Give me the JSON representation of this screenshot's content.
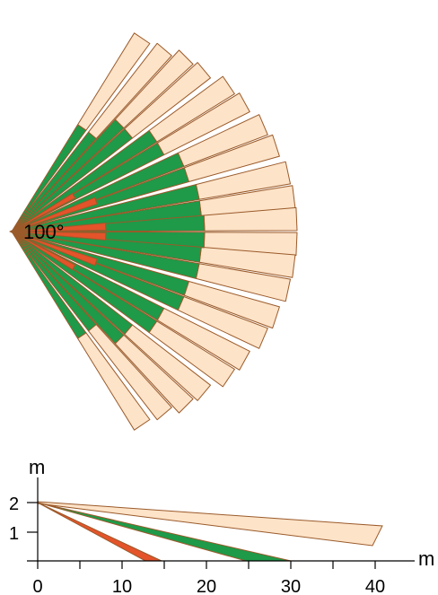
{
  "top_view": {
    "angle_label": "100°",
    "zones": [
      "far",
      "mid",
      "near"
    ],
    "colors": {
      "far": "#fde3c8",
      "mid": "#1e9a49",
      "near": "#e4532a",
      "outline": "#9a5a2a",
      "origin": "#9a5a2a"
    }
  },
  "side_view": {
    "y_axis_unit": "m",
    "x_axis_unit": "m",
    "y_ticks": [
      "1",
      "2"
    ],
    "x_ticks": [
      "0",
      "10",
      "20",
      "30",
      "40"
    ]
  }
}
